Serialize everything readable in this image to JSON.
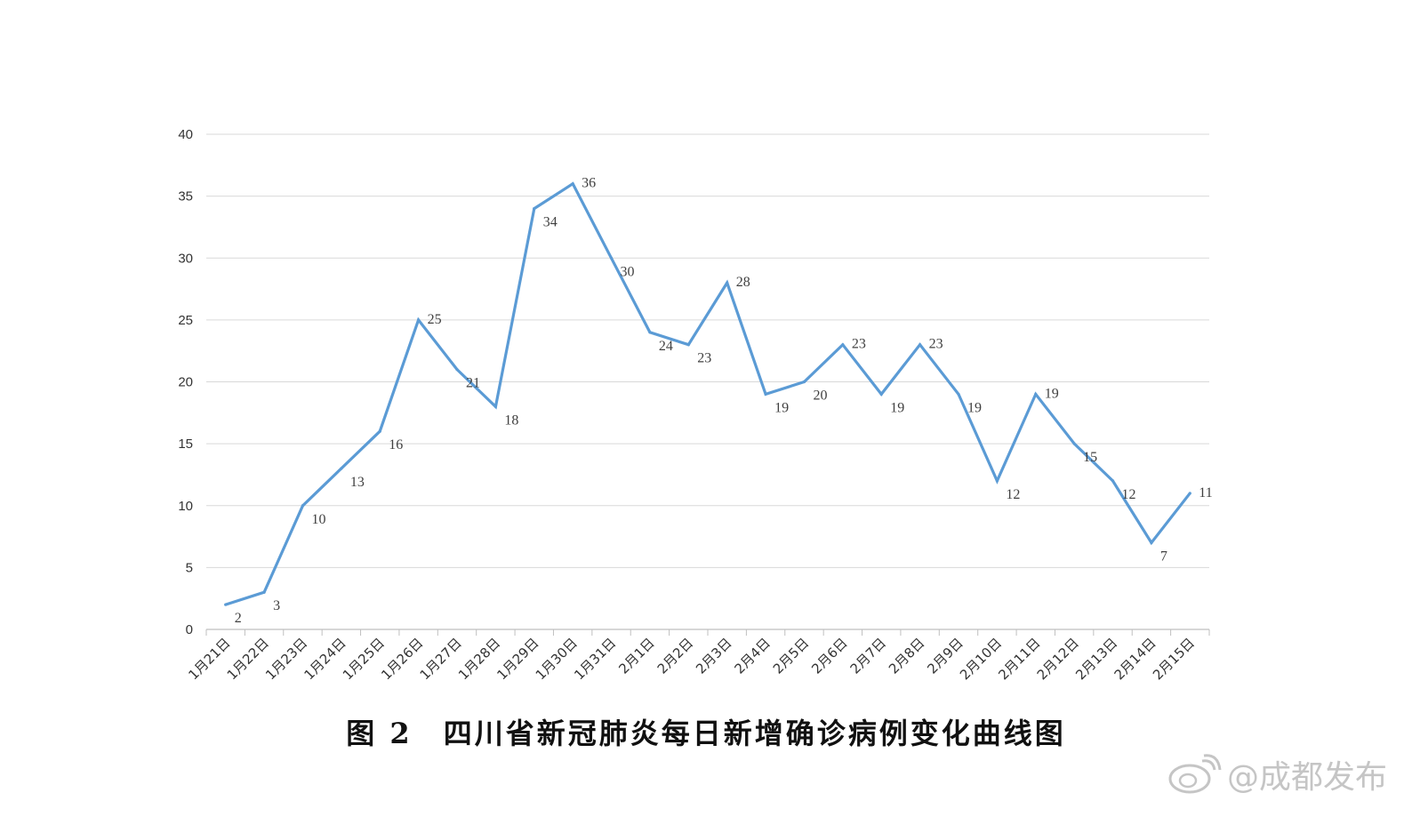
{
  "chart_data": {
    "type": "line",
    "categories": [
      "1月21日",
      "1月22日",
      "1月23日",
      "1月24日",
      "1月25日",
      "1月26日",
      "1月27日",
      "1月28日",
      "1月29日",
      "1月30日",
      "1月31日",
      "2月1日",
      "2月2日",
      "2月3日",
      "2月4日",
      "2月5日",
      "2月6日",
      "2月7日",
      "2月8日",
      "2月9日",
      "2月10日",
      "2月11日",
      "2月12日",
      "2月13日",
      "2月14日",
      "2月15日"
    ],
    "values": [
      2,
      3,
      10,
      13,
      16,
      25,
      21,
      18,
      34,
      36,
      30,
      24,
      23,
      28,
      19,
      20,
      23,
      19,
      23,
      19,
      12,
      19,
      15,
      12,
      7,
      11
    ],
    "ylim": [
      0,
      40
    ],
    "yticks": [
      0,
      5,
      10,
      15,
      20,
      25,
      30,
      35,
      40
    ],
    "grid": true,
    "line_color": "#5B9BD5",
    "label_color": "#404040"
  },
  "caption": "图 2　四川省新冠肺炎每日新增确诊病例变化曲线图",
  "watermark": {
    "text": "@成都发布",
    "icon": "weibo-icon"
  }
}
